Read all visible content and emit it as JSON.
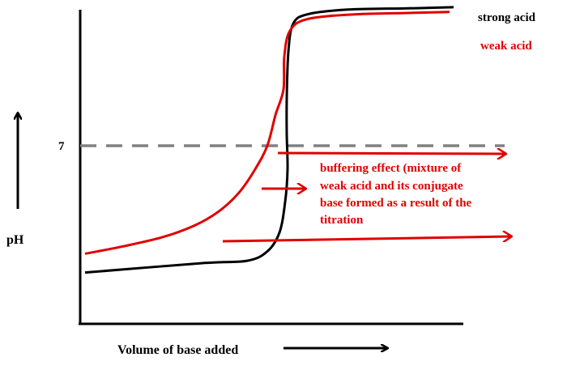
{
  "chart_data": {
    "type": "line",
    "title": "",
    "xlabel": "Volume of base added",
    "ylabel": "pH",
    "y_tick_label": "7",
    "grid": false,
    "legend_placement": "top-right",
    "reference_line": {
      "value": 7,
      "style": "dashed",
      "color": "#808080"
    },
    "series": [
      {
        "name": "strong acid",
        "color": "#000000",
        "points": [
          [
            0.05,
            1.6
          ],
          [
            1.5,
            2.0
          ],
          [
            2.05,
            2.1
          ],
          [
            2.3,
            2.5
          ],
          [
            2.45,
            3.3
          ],
          [
            2.52,
            4.6
          ],
          [
            2.55,
            6.0
          ],
          [
            2.54,
            7.5
          ],
          [
            2.54,
            9.0
          ],
          [
            2.56,
            11.0
          ],
          [
            2.62,
            12.2
          ],
          [
            2.8,
            12.6
          ],
          [
            3.3,
            12.8
          ],
          [
            4.0,
            12.85
          ],
          [
            4.6,
            12.9
          ]
        ]
      },
      {
        "name": "weak acid",
        "color": "#e00000",
        "points": [
          [
            0.05,
            2.4
          ],
          [
            0.5,
            2.7
          ],
          [
            1.0,
            3.1
          ],
          [
            1.4,
            3.6
          ],
          [
            1.7,
            4.2
          ],
          [
            1.95,
            5.0
          ],
          [
            2.15,
            6.0
          ],
          [
            2.3,
            7.0
          ],
          [
            2.4,
            8.3
          ],
          [
            2.5,
            9.4
          ],
          [
            2.51,
            10.8
          ],
          [
            2.58,
            11.9
          ],
          [
            2.8,
            12.4
          ],
          [
            3.4,
            12.6
          ],
          [
            4.0,
            12.65
          ],
          [
            4.55,
            12.7
          ]
        ]
      }
    ],
    "annotation": {
      "text_lines": [
        "buffering effect (mixture of",
        "weak acid and its conjugate",
        "base formed as a result of the",
        "titration"
      ],
      "color": "#e00000",
      "arrows_point_to_x": [
        2.3,
        2.05,
        1.65
      ]
    }
  },
  "labels": {
    "strong_acid": "strong acid",
    "weak_acid": "weak acid"
  }
}
